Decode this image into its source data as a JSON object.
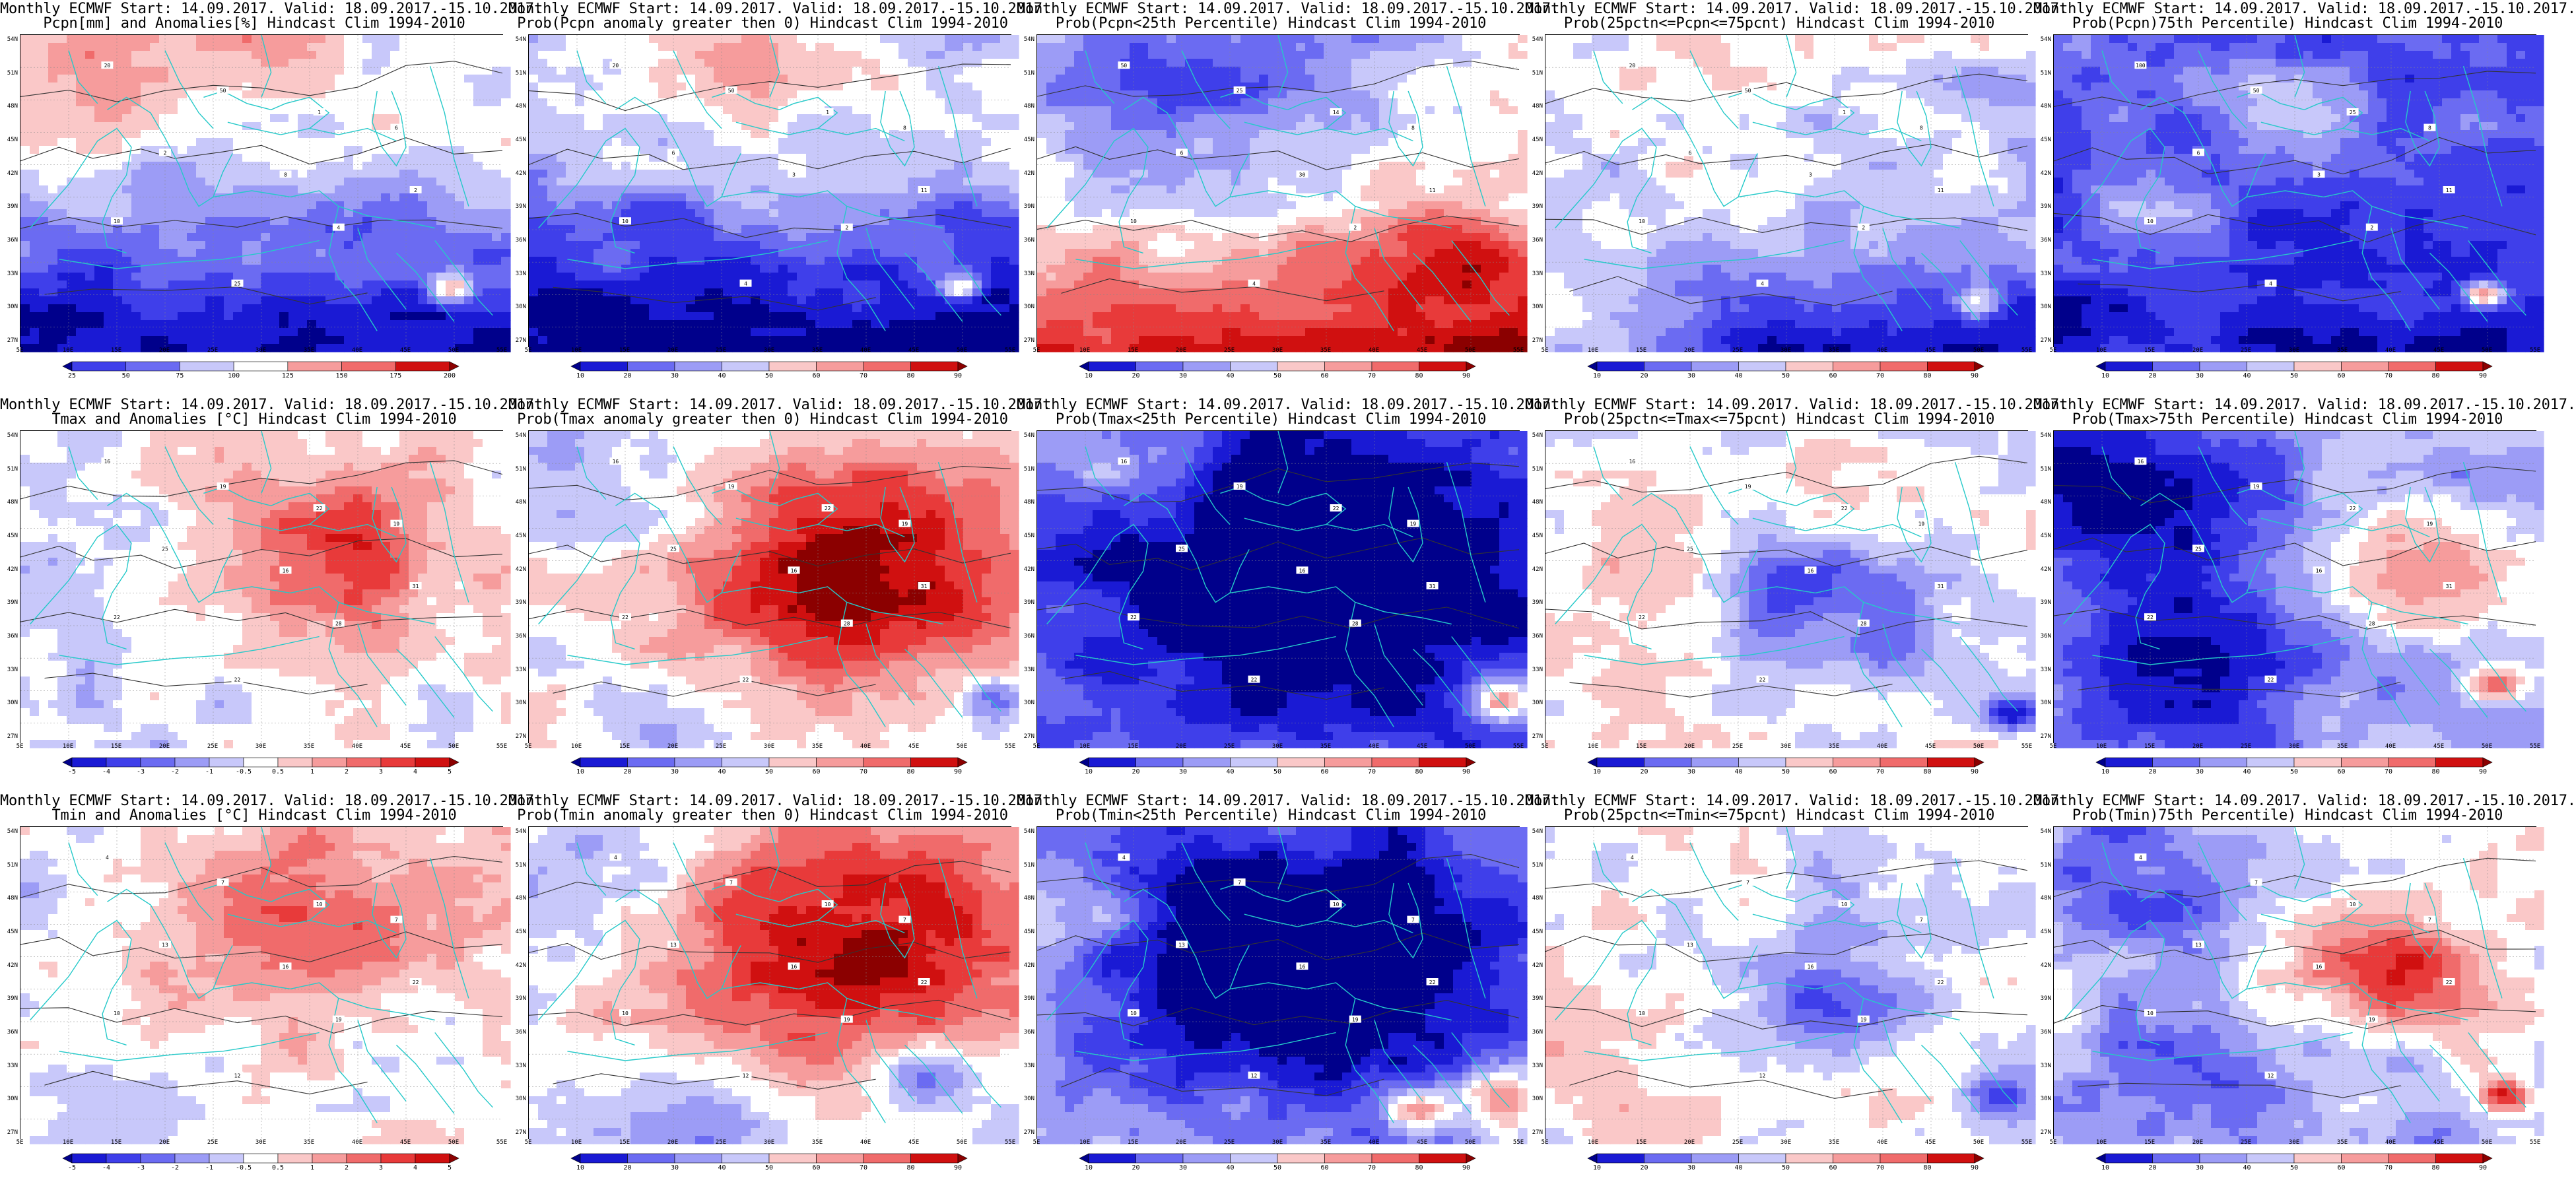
{
  "figure": {
    "lat_labels": [
      "54N",
      "51N",
      "48N",
      "45N",
      "42N",
      "39N",
      "36N",
      "33N",
      "30N",
      "27N"
    ],
    "lon_labels": [
      "5E",
      "10E",
      "15E",
      "20E",
      "25E",
      "30E",
      "35E",
      "40E",
      "45E",
      "50E",
      "55E"
    ],
    "colors": {
      "coast": "#25c9c9",
      "contour": "#333333",
      "blue_ramp": [
        "#00008b",
        "#1a1ad4",
        "#3f3fea",
        "#6b6bf2",
        "#9c9cf6",
        "#c8c8fa",
        "#ffffff"
      ],
      "red_ramp": [
        "#ffffff",
        "#fac8c8",
        "#f69c9c",
        "#f06b6b",
        "#e83a3a",
        "#d01010",
        "#8b0000"
      ]
    },
    "panels": [
      {
        "id": "pcpn-anom",
        "line1": "Monthly ECMWF Start: 14.09.2017. Valid: 18.09.2017.-15.10.2017.",
        "line2": "Pcpn[mm] and Anomalies[%] Hindcast Clim 1994-2010",
        "colorbar": [
          "25",
          "50",
          "75",
          "100",
          "125",
          "150",
          "175",
          "200"
        ],
        "pattern": "pcpn-anom",
        "point_labels": [
          "20",
          "50",
          "1",
          "2",
          "8",
          "6",
          "10",
          "4",
          "2",
          "25"
        ]
      },
      {
        "id": "pcpn-prob-gt0",
        "line1": "Monthly ECMWF Start: 14.09.2017. Valid: 18.09.2017.-15.10.2017.",
        "line2": "Prob(Pcpn anomaly greater then 0) Hindcast Clim 1994-2010",
        "colorbar": [
          "10",
          "20",
          "30",
          "40",
          "50",
          "60",
          "70",
          "80",
          "90"
        ],
        "pattern": "pcpn-gt0",
        "point_labels": [
          "20",
          "50",
          "1",
          "6",
          "3",
          "8",
          "10",
          "2",
          "11",
          "4"
        ]
      },
      {
        "id": "pcpn-prob-lt25",
        "line1": "Monthly ECMWF Start: 14.09.2017. Valid: 18.09.2017.-15.10.2017.",
        "line2": "Prob(Pcpn<25th Percentile) Hindcast Clim 1994-2010",
        "colorbar": [
          "10",
          "20",
          "30",
          "40",
          "50",
          "60",
          "70",
          "80",
          "90"
        ],
        "pattern": "pcpn-lt25",
        "point_labels": [
          "50",
          "25",
          "14",
          "6",
          "30",
          "8",
          "10",
          "2",
          "11",
          "4"
        ]
      },
      {
        "id": "pcpn-prob-mid",
        "line1": "Monthly ECMWF Start: 14.09.2017. Valid: 18.09.2017.-15.10.2017.",
        "line2": "Prob(25pctn<=Pcpn<=75pcnt) Hindcast Clim 1994-2010",
        "colorbar": [
          "10",
          "20",
          "30",
          "40",
          "50",
          "60",
          "70",
          "80",
          "90"
        ],
        "pattern": "pcpn-mid",
        "point_labels": [
          "20",
          "50",
          "1",
          "6",
          "3",
          "8",
          "10",
          "2",
          "11",
          "4"
        ]
      },
      {
        "id": "pcpn-prob-gt75",
        "line1": "Monthly ECMWF Start: 14.09.2017. Valid: 18.09.2017.-15.10.2017.",
        "line2": "Prob(Pcpn)75th Percentile) Hindcast Clim 1994-2010",
        "colorbar": [
          "10",
          "20",
          "30",
          "40",
          "50",
          "60",
          "70",
          "80",
          "90"
        ],
        "pattern": "pcpn-gt75",
        "point_labels": [
          "100",
          "50",
          "25",
          "6",
          "3",
          "8",
          "10",
          "2",
          "11",
          "4"
        ]
      },
      {
        "id": "tmax-anom",
        "line1": "Monthly ECMWF Start: 14.09.2017. Valid: 18.09.2017.-15.10.2017.",
        "line2": "Tmax and Anomalies [°C] Hindcast Clim 1994-2010",
        "colorbar": [
          "-5",
          "-4",
          "-3",
          "-2",
          "-1",
          "-0.5",
          "0.5",
          "1",
          "2",
          "3",
          "4",
          "5"
        ],
        "pattern": "tmax-anom",
        "point_labels": [
          "16",
          "19",
          "22",
          "25",
          "16",
          "19",
          "22",
          "28",
          "31",
          "22"
        ]
      },
      {
        "id": "tmax-prob-gt0",
        "line1": "Monthly ECMWF Start: 14.09.2017. Valid: 18.09.2017.-15.10.2017.",
        "line2": "Prob(Tmax anomaly greater then 0) Hindcast Clim 1994-2010",
        "colorbar": [
          "10",
          "20",
          "30",
          "40",
          "50",
          "60",
          "70",
          "80",
          "90"
        ],
        "pattern": "tmax-gt0",
        "point_labels": [
          "16",
          "19",
          "22",
          "25",
          "16",
          "19",
          "22",
          "28",
          "31",
          "22"
        ]
      },
      {
        "id": "tmax-prob-lt25",
        "line1": "Monthly ECMWF Start: 14.09.2017. Valid: 18.09.2017.-15.10.2017.",
        "line2": "Prob(Tmax<25th Percentile) Hindcast Clim 1994-2010",
        "colorbar": [
          "10",
          "20",
          "30",
          "40",
          "50",
          "60",
          "70",
          "80",
          "90"
        ],
        "pattern": "tmax-lt25",
        "point_labels": [
          "16",
          "19",
          "22",
          "25",
          "16",
          "19",
          "22",
          "28",
          "31",
          "22"
        ]
      },
      {
        "id": "tmax-prob-mid",
        "line1": "Monthly ECMWF Start: 14.09.2017. Valid: 18.09.2017.-15.10.2017.",
        "line2": "Prob(25pctn<=Tmax<=75pcnt) Hindcast Clim 1994-2010",
        "colorbar": [
          "10",
          "20",
          "30",
          "40",
          "50",
          "60",
          "70",
          "80",
          "90"
        ],
        "pattern": "tmax-mid",
        "point_labels": [
          "16",
          "19",
          "22",
          "25",
          "16",
          "19",
          "22",
          "28",
          "31",
          "22"
        ]
      },
      {
        "id": "tmax-prob-gt75",
        "line1": "Monthly ECMWF Start: 14.09.2017. Valid: 18.09.2017.-15.10.2017.",
        "line2": "Prob(Tmax>75th Percentile) Hindcast Clim 1994-2010",
        "colorbar": [
          "10",
          "20",
          "30",
          "40",
          "50",
          "60",
          "70",
          "80",
          "90"
        ],
        "pattern": "tmax-gt75",
        "point_labels": [
          "16",
          "19",
          "22",
          "25",
          "16",
          "19",
          "22",
          "28",
          "31",
          "22"
        ]
      },
      {
        "id": "tmin-anom",
        "line1": "Monthly ECMWF Start: 14.09.2017. Valid: 18.09.2017.-15.10.2017.",
        "line2": "Tmin and Anomalies [°C] Hindcast Clim 1994-2010",
        "colorbar": [
          "-5",
          "-4",
          "-3",
          "-2",
          "-1",
          "-0.5",
          "0.5",
          "1",
          "2",
          "3",
          "4",
          "5"
        ],
        "pattern": "tmin-anom",
        "point_labels": [
          "4",
          "7",
          "10",
          "13",
          "16",
          "7",
          "10",
          "19",
          "22",
          "12"
        ]
      },
      {
        "id": "tmin-prob-gt0",
        "line1": "Monthly ECMWF Start: 14.09.2017. Valid: 18.09.2017.-15.10.2017.",
        "line2": "Prob(Tmin anomaly greater then 0) Hindcast Clim 1994-2010",
        "colorbar": [
          "10",
          "20",
          "30",
          "40",
          "50",
          "60",
          "70",
          "80",
          "90"
        ],
        "pattern": "tmin-gt0",
        "point_labels": [
          "4",
          "7",
          "10",
          "13",
          "16",
          "7",
          "10",
          "19",
          "22",
          "12"
        ]
      },
      {
        "id": "tmin-prob-lt25",
        "line1": "Monthly ECMWF Start: 14.09.2017. Valid: 18.09.2017.-15.10.2017.",
        "line2": "Prob(Tmin<25th Percentile) Hindcast Clim 1994-2010",
        "colorbar": [
          "10",
          "20",
          "30",
          "40",
          "50",
          "60",
          "70",
          "80",
          "90"
        ],
        "pattern": "tmin-lt25",
        "point_labels": [
          "4",
          "7",
          "10",
          "13",
          "16",
          "7",
          "10",
          "19",
          "22",
          "12"
        ]
      },
      {
        "id": "tmin-prob-mid",
        "line1": "Monthly ECMWF Start: 14.09.2017. Valid: 18.09.2017.-15.10.2017.",
        "line2": "Prob(25pctn<=Tmin<=75pcnt) Hindcast Clim 1994-2010",
        "colorbar": [
          "10",
          "20",
          "30",
          "40",
          "50",
          "60",
          "70",
          "80",
          "90"
        ],
        "pattern": "tmin-mid",
        "point_labels": [
          "4",
          "7",
          "10",
          "13",
          "16",
          "7",
          "10",
          "19",
          "22",
          "12"
        ]
      },
      {
        "id": "tmin-prob-gt75",
        "line1": "Monthly ECMWF Start: 14.09.2017. Valid: 18.09.2017.-15.10.2017.",
        "line2": "Prob(Tmin)75th Percentile) Hindcast Clim 1994-2010",
        "colorbar": [
          "10",
          "20",
          "30",
          "40",
          "50",
          "60",
          "70",
          "80",
          "90"
        ],
        "pattern": "tmin-gt75",
        "point_labels": [
          "4",
          "7",
          "10",
          "13",
          "16",
          "7",
          "10",
          "19",
          "22",
          "12"
        ]
      }
    ]
  }
}
